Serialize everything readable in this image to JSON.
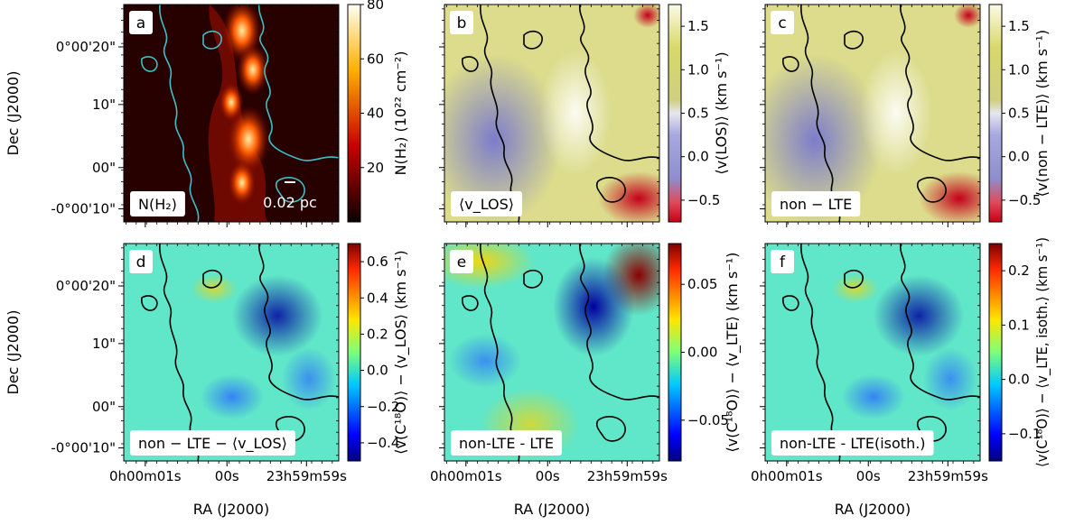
{
  "chart_data": {
    "type": "heatmap",
    "x_axis": {
      "label": "RA (J2000)",
      "ticks": [
        "0h00m01s",
        "00s",
        "23h59m59s"
      ]
    },
    "y_axis": {
      "label": "Dec (J2000)",
      "ticks": [
        "0°00'20\"",
        "10\"",
        "00\"",
        "-0°00'10\""
      ]
    },
    "panels": [
      {
        "id": "a",
        "letter": "a",
        "inset_label": "N(H₂)",
        "scale_bar": "0.02 pc",
        "colormap": "hot",
        "contour_color": "#3fbfc4",
        "colorbar": {
          "label": "N(H₂) (10²² cm⁻²)",
          "range": [
            0,
            80
          ],
          "ticks": [
            "20",
            "40",
            "60",
            "80"
          ]
        }
      },
      {
        "id": "b",
        "letter": "b",
        "inset_label": "⟨v_LOS⟩",
        "colormap": "diverging red-blue-white-olive",
        "contour_color": "#000000",
        "colorbar": {
          "label": "⟨v(LOS)⟩ (km s⁻¹)",
          "range": [
            -0.75,
            1.75
          ],
          "ticks": [
            "−0.5",
            "0.0",
            "0.5",
            "1.0",
            "1.5"
          ]
        }
      },
      {
        "id": "c",
        "letter": "c",
        "inset_label": "non − LTE",
        "colormap": "diverging red-blue-white-olive",
        "contour_color": "#000000",
        "colorbar": {
          "label": "⟨v(non − LTE)⟩ (km s⁻¹)",
          "range": [
            -0.75,
            1.75
          ],
          "ticks": [
            "−0.5",
            "0.0",
            "0.5",
            "1.0",
            "1.5"
          ]
        }
      },
      {
        "id": "d",
        "letter": "d",
        "inset_label": "non − LTE − ⟨v_LOS⟩",
        "colormap": "jet",
        "contour_color": "#000000",
        "colorbar": {
          "label": "⟨v(C¹⁸O)⟩ − ⟨v_LOS⟩ (km s⁻¹)",
          "range": [
            -0.5,
            0.7
          ],
          "ticks": [
            "−0.4",
            "−0.2",
            "0.0",
            "0.2",
            "0.4",
            "0.6"
          ]
        }
      },
      {
        "id": "e",
        "letter": "e",
        "inset_label": "non-LTE - LTE",
        "colormap": "jet",
        "contour_color": "#000000",
        "colorbar": {
          "label": "⟨v(C¹⁸O)⟩ − ⟨v_LTE⟩ (km s⁻¹)",
          "range": [
            -0.08,
            0.08
          ],
          "ticks": [
            "−0.05",
            "0.00",
            "0.05"
          ]
        }
      },
      {
        "id": "f",
        "letter": "f",
        "inset_label": "non-LTE - LTE(isoth.)",
        "colormap": "jet",
        "contour_color": "#000000",
        "colorbar": {
          "label": "⟨v(C¹⁸O)⟩ − ⟨v_LTE, isoth.⟩ (km s⁻¹)",
          "range": [
            -0.15,
            0.25
          ],
          "ticks": [
            "−0.1",
            "0.0",
            "0.1",
            "0.2"
          ]
        }
      }
    ]
  }
}
